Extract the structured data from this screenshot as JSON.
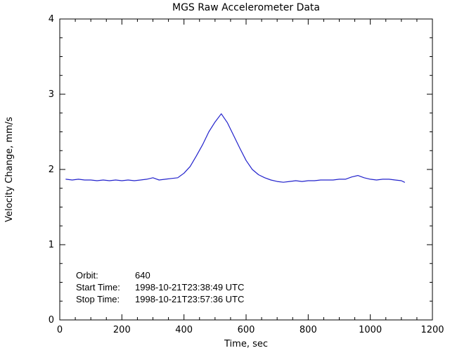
{
  "chart_data": {
    "type": "line",
    "title": "MGS Raw Accelerometer Data",
    "xlabel": "Time, sec",
    "ylabel": "Velocity Change, mm/s",
    "xlim": [
      0,
      1200
    ],
    "ylim": [
      0,
      4
    ],
    "x_ticks": [
      0,
      200,
      400,
      600,
      800,
      1000,
      1200
    ],
    "y_ticks": [
      0,
      1,
      2,
      3,
      4
    ],
    "x_minor_step": 50,
    "y_minor_step": 0.25,
    "grid": false,
    "legend": "none",
    "line_color": "#2222cc",
    "axis_color": "#000000",
    "background_color": "#ffffff",
    "series": [
      {
        "name": "velocity-change",
        "x": [
          20,
          40,
          60,
          80,
          100,
          120,
          140,
          160,
          180,
          200,
          220,
          240,
          260,
          280,
          300,
          320,
          340,
          360,
          380,
          400,
          420,
          440,
          460,
          480,
          500,
          520,
          540,
          560,
          580,
          600,
          620,
          640,
          660,
          680,
          700,
          720,
          740,
          760,
          780,
          800,
          820,
          840,
          860,
          880,
          900,
          920,
          940,
          960,
          980,
          1000,
          1020,
          1040,
          1060,
          1080,
          1100,
          1110
        ],
        "y": [
          1.87,
          1.86,
          1.87,
          1.86,
          1.86,
          1.85,
          1.86,
          1.85,
          1.86,
          1.85,
          1.86,
          1.85,
          1.86,
          1.87,
          1.89,
          1.86,
          1.87,
          1.88,
          1.89,
          1.95,
          2.04,
          2.18,
          2.33,
          2.5,
          2.63,
          2.74,
          2.62,
          2.45,
          2.28,
          2.12,
          2.0,
          1.93,
          1.89,
          1.86,
          1.84,
          1.83,
          1.84,
          1.85,
          1.84,
          1.85,
          1.85,
          1.86,
          1.86,
          1.86,
          1.87,
          1.87,
          1.9,
          1.92,
          1.89,
          1.87,
          1.86,
          1.87,
          1.87,
          1.86,
          1.85,
          1.83
        ]
      }
    ],
    "annotations": [
      {
        "label": "Orbit:",
        "value": "640"
      },
      {
        "label": "Start Time:",
        "value": "1998-10-21T23:38:49 UTC"
      },
      {
        "label": "Stop Time:",
        "value": "1998-10-21T23:57:36 UTC"
      }
    ]
  }
}
